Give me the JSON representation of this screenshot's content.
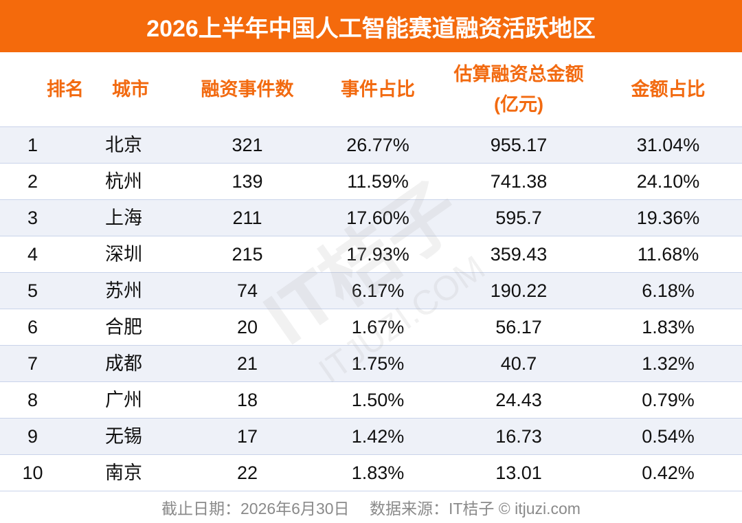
{
  "header": {
    "title": "2026上半年中国人工智能赛道融资活跃地区"
  },
  "table": {
    "columns": [
      "排名",
      "城市",
      "融资事件数",
      "事件占比",
      "估算融资总金额(亿元)",
      "金额占比"
    ],
    "rows": [
      [
        "1",
        "北京",
        "321",
        "26.77%",
        "955.17",
        "31.04%"
      ],
      [
        "2",
        "杭州",
        "139",
        "11.59%",
        "741.38",
        "24.10%"
      ],
      [
        "3",
        "上海",
        "211",
        "17.60%",
        "595.7",
        "19.36%"
      ],
      [
        "4",
        "深圳",
        "215",
        "17.93%",
        "359.43",
        "11.68%"
      ],
      [
        "5",
        "苏州",
        "74",
        "6.17%",
        "190.22",
        "6.18%"
      ],
      [
        "6",
        "合肥",
        "20",
        "1.67%",
        "56.17",
        "1.83%"
      ],
      [
        "7",
        "成都",
        "21",
        "1.75%",
        "40.7",
        "1.32%"
      ],
      [
        "8",
        "广州",
        "18",
        "1.50%",
        "24.43",
        "0.79%"
      ],
      [
        "9",
        "无锡",
        "17",
        "1.42%",
        "16.73",
        "0.54%"
      ],
      [
        "10",
        "南京",
        "22",
        "1.83%",
        "13.01",
        "0.42%"
      ]
    ]
  },
  "watermark": {
    "brand": "IT桔子",
    "site": "ITJUZI.COM"
  },
  "footer": {
    "note": "截止日期：2026年6月30日　 数据来源：IT桔子 © itjuzi.com"
  }
}
